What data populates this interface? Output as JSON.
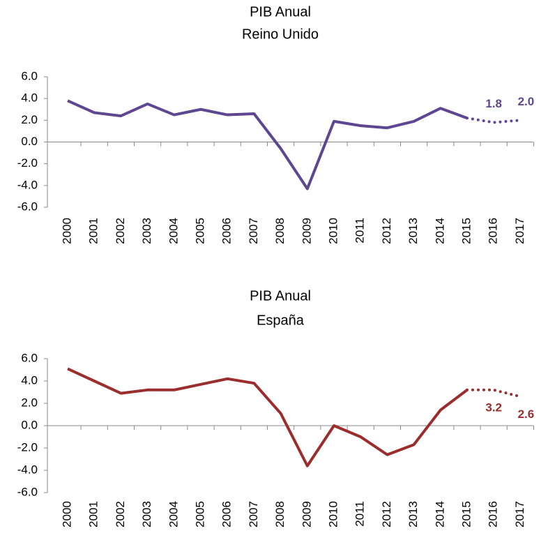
{
  "chart_data": [
    {
      "type": "line",
      "title": "PIB Anual",
      "subtitle": "Reino Unido",
      "categories": [
        "2000",
        "2001",
        "2002",
        "2003",
        "2004",
        "2005",
        "2006",
        "2007",
        "2008",
        "2009",
        "2010",
        "2011",
        "2012",
        "2013",
        "2014",
        "2015",
        "2016",
        "2017"
      ],
      "series": [
        {
          "color": "#5e4790",
          "style": "solid",
          "values": [
            3.8,
            2.7,
            2.4,
            3.5,
            2.5,
            3.0,
            2.5,
            2.6,
            -0.6,
            -4.3,
            1.9,
            1.5,
            1.3,
            1.9,
            3.1,
            2.2,
            null,
            null
          ]
        },
        {
          "color": "#5e4790",
          "style": "dotted",
          "values": [
            null,
            null,
            null,
            null,
            null,
            null,
            null,
            null,
            null,
            null,
            null,
            null,
            null,
            null,
            null,
            2.2,
            1.8,
            2.0
          ],
          "value_labels": [
            null,
            null,
            null,
            null,
            null,
            null,
            null,
            null,
            null,
            null,
            null,
            null,
            null,
            null,
            null,
            null,
            "1.8",
            "2.0"
          ]
        }
      ],
      "ylim": [
        -6,
        6
      ],
      "yticks": [
        {
          "value": -6,
          "label": "-6.0"
        },
        {
          "value": -4,
          "label": "-4.0"
        },
        {
          "value": -2,
          "label": "-2.0"
        },
        {
          "value": 0,
          "label": "0.0"
        },
        {
          "value": 2,
          "label": "2.0"
        },
        {
          "value": 4,
          "label": "4.0"
        },
        {
          "value": 6,
          "label": "6.0"
        }
      ]
    },
    {
      "type": "line",
      "title": "PIB Anual",
      "subtitle": "España",
      "categories": [
        "2000",
        "2001",
        "2002",
        "2003",
        "2004",
        "2005",
        "2006",
        "2007",
        "2008",
        "2009",
        "2010",
        "2011",
        "2012",
        "2013",
        "2014",
        "2015",
        "2016",
        "2017"
      ],
      "series": [
        {
          "color": "#9b2d2d",
          "style": "solid",
          "values": [
            5.1,
            4.0,
            2.9,
            3.2,
            3.2,
            3.7,
            4.2,
            3.8,
            1.1,
            -3.6,
            0.0,
            -1.0,
            -2.6,
            -1.7,
            1.4,
            3.2,
            null,
            null
          ]
        },
        {
          "color": "#9b2d2d",
          "style": "dotted",
          "values": [
            null,
            null,
            null,
            null,
            null,
            null,
            null,
            null,
            null,
            null,
            null,
            null,
            null,
            null,
            null,
            3.2,
            3.2,
            2.6
          ],
          "value_labels": [
            null,
            null,
            null,
            null,
            null,
            null,
            null,
            null,
            null,
            null,
            null,
            null,
            null,
            null,
            null,
            null,
            "3.2",
            "2.6"
          ]
        }
      ],
      "ylim": [
        -6,
        6
      ],
      "yticks": [
        {
          "value": -6,
          "label": "-6.0"
        },
        {
          "value": -4,
          "label": "-4.0"
        },
        {
          "value": -2,
          "label": "-2.0"
        },
        {
          "value": 0,
          "label": "0.0"
        },
        {
          "value": 2,
          "label": "2.0"
        },
        {
          "value": 4,
          "label": "4.0"
        },
        {
          "value": 6,
          "label": "6.0"
        }
      ]
    }
  ]
}
